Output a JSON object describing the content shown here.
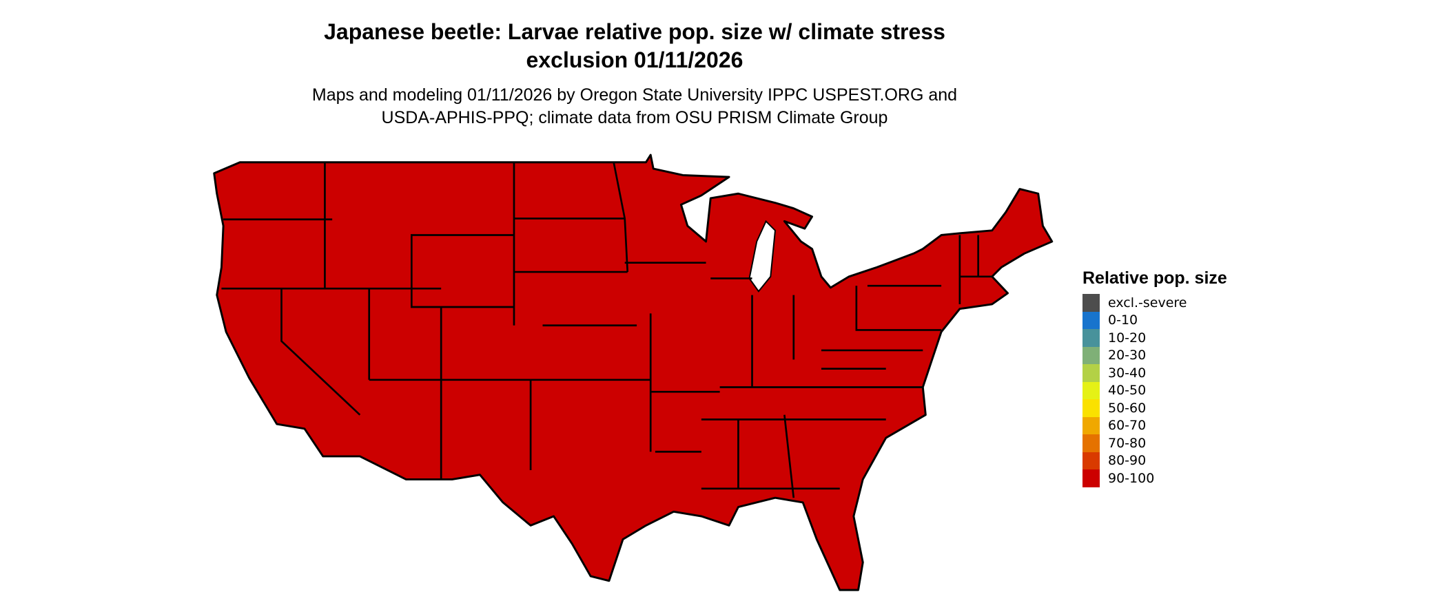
{
  "title": {
    "line1": "Japanese beetle: Larvae relative pop. size w/ climate stress",
    "line2": "exclusion 01/11/2026"
  },
  "subtitle": {
    "line1": "Maps and modeling 01/11/2026 by Oregon State University IPPC USPEST.ORG and",
    "line2": "USDA-APHIS-PPQ; climate data from OSU PRISM Climate Group"
  },
  "map": {
    "region": "Contiguous United States",
    "fill_color": "#CC0000",
    "border_color": "#000000",
    "displayed_class": "90-100"
  },
  "legend": {
    "title": "Relative pop. size",
    "items": [
      {
        "label": "excl.-severe",
        "color": "#4D4D4D"
      },
      {
        "label": "0-10",
        "color": "#1874CD"
      },
      {
        "label": "10-20",
        "color": "#48929B"
      },
      {
        "label": "20-30",
        "color": "#7FB077"
      },
      {
        "label": "30-40",
        "color": "#B3D146"
      },
      {
        "label": "40-50",
        "color": "#E5F116"
      },
      {
        "label": "50-60",
        "color": "#FAE100"
      },
      {
        "label": "60-70",
        "color": "#F0A800"
      },
      {
        "label": "70-80",
        "color": "#E57200"
      },
      {
        "label": "80-90",
        "color": "#D93A00"
      },
      {
        "label": "90-100",
        "color": "#CC0000"
      }
    ]
  }
}
